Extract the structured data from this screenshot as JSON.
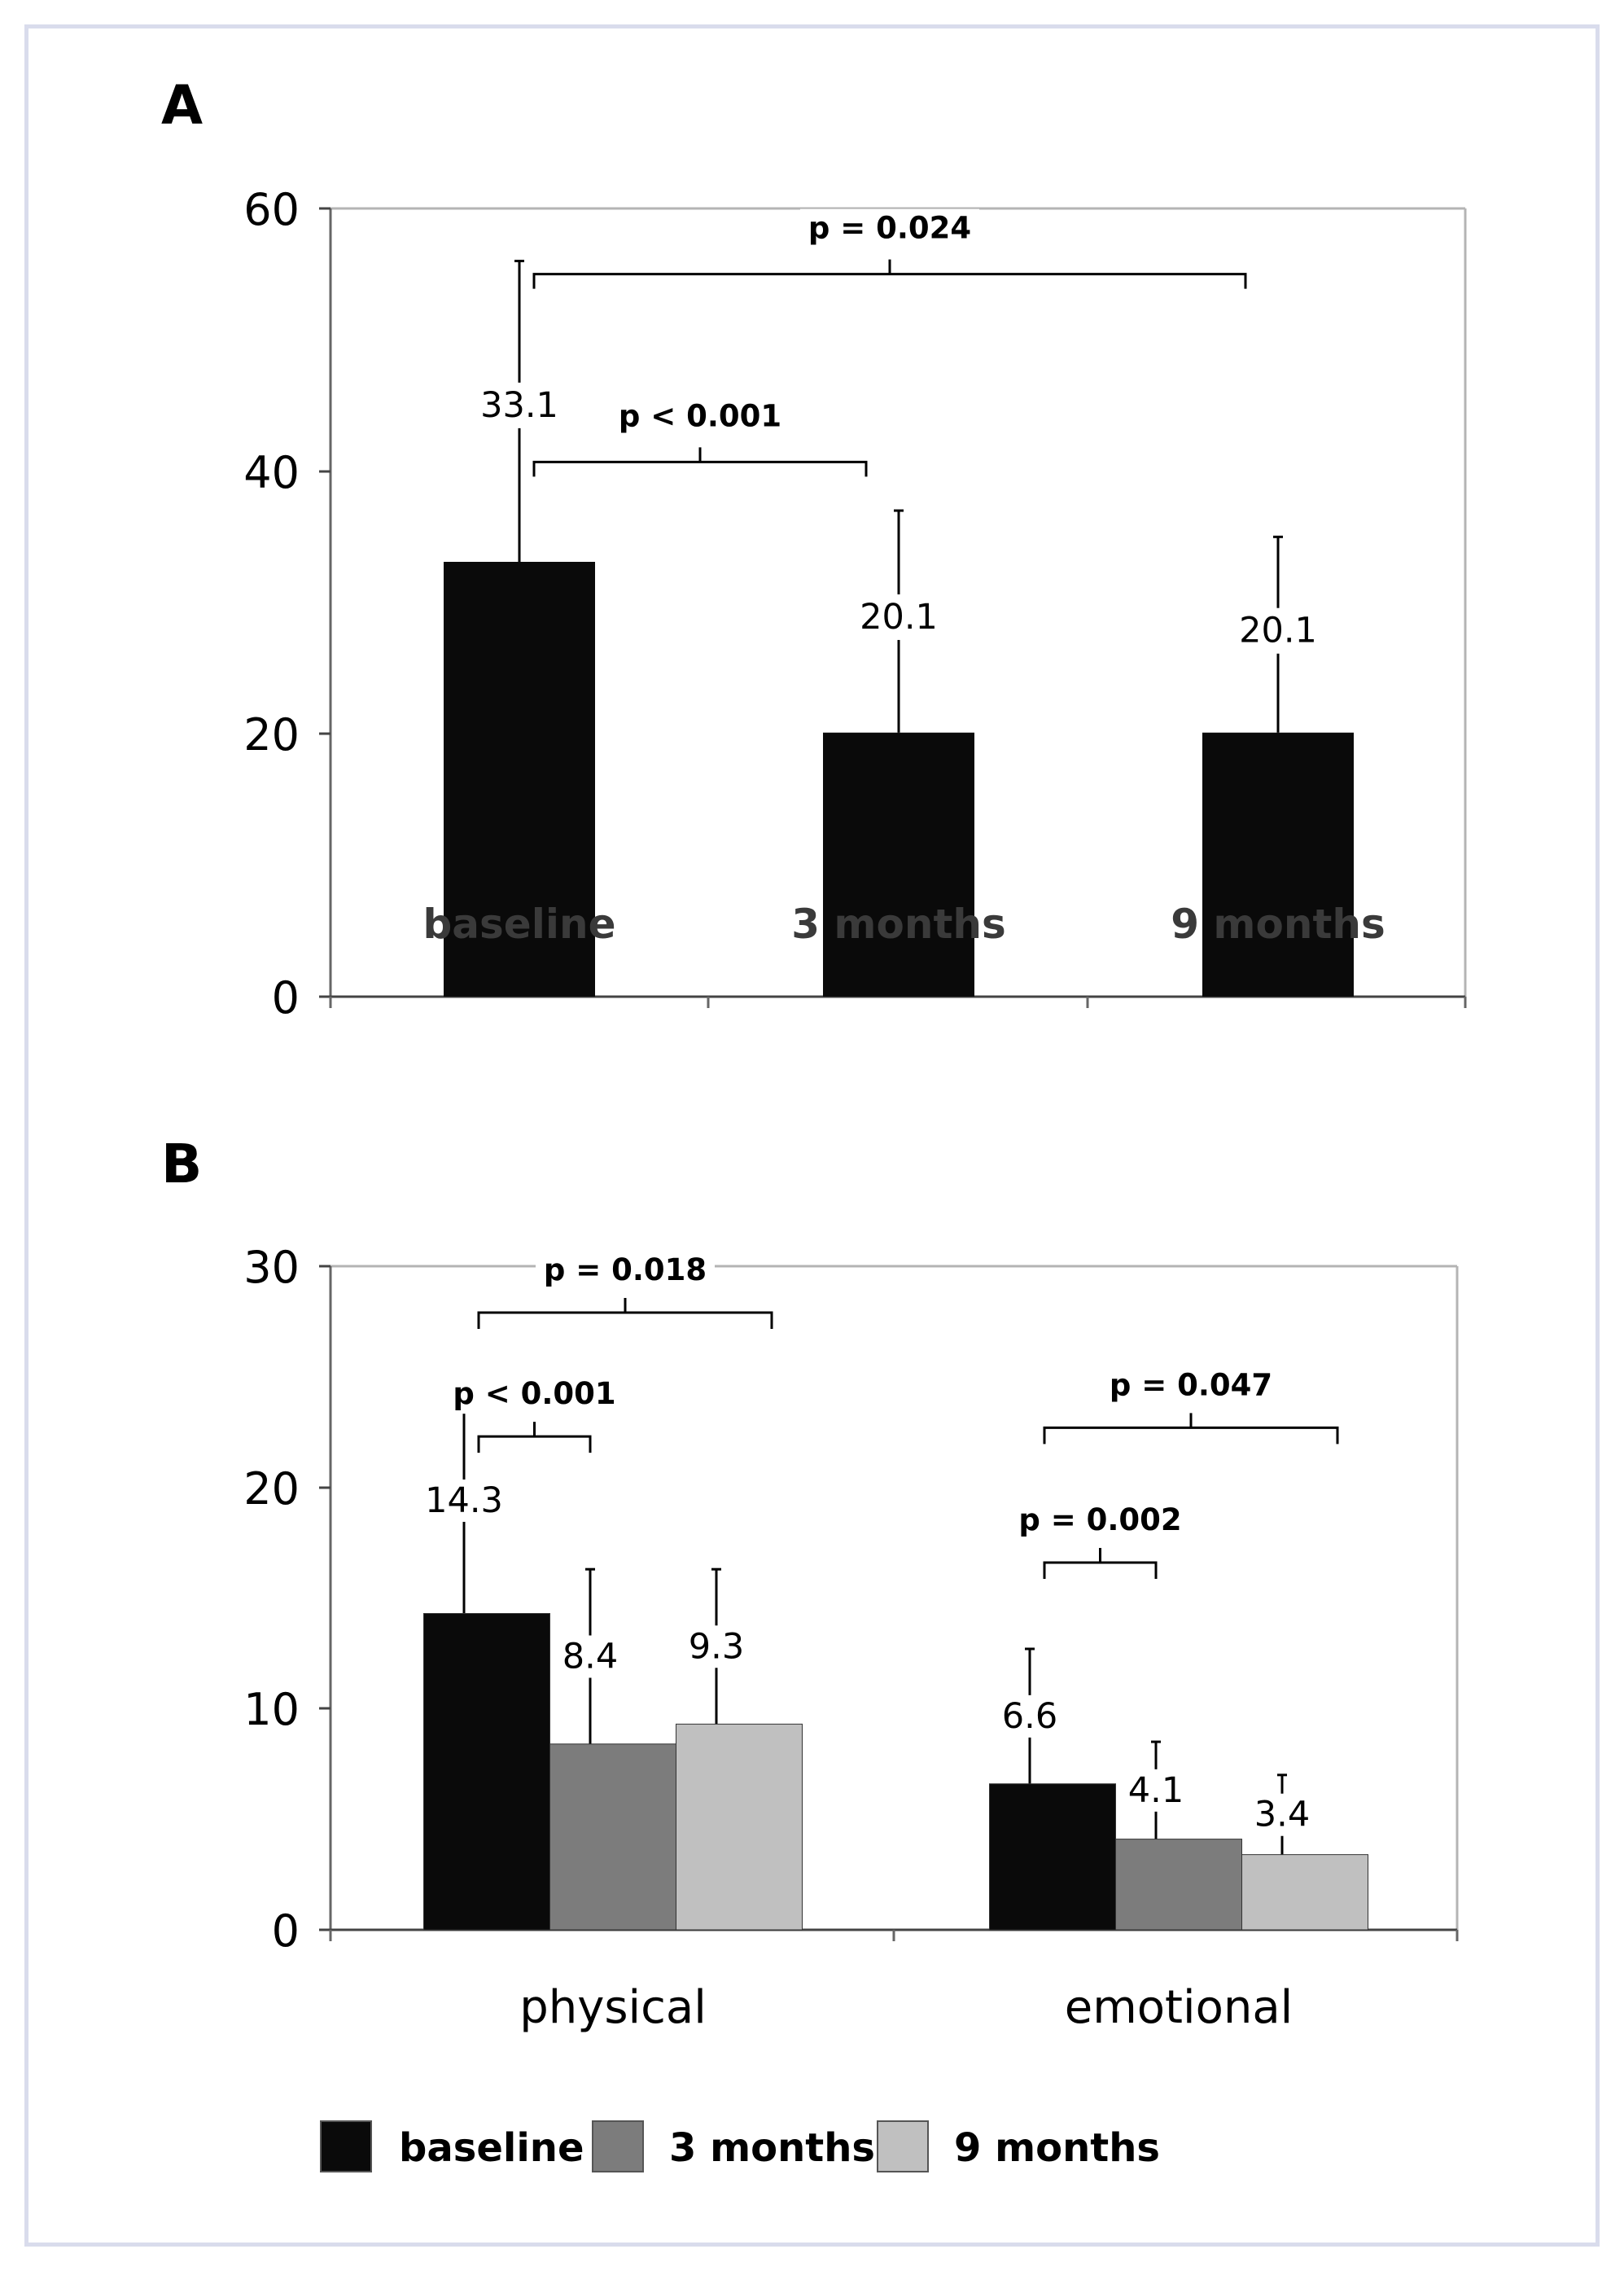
{
  "chart_data": [
    {
      "id": "A",
      "panel_label": "A",
      "type": "bar",
      "categories": [
        "baseline",
        "3 months",
        "9 months"
      ],
      "values": [
        33.1,
        20.1,
        20.1
      ],
      "error_upper": [
        56,
        37,
        35
      ],
      "value_labels": [
        "33.1",
        "20.1",
        "20.1"
      ],
      "ylim": [
        0,
        60
      ],
      "yticks": [
        "0",
        "20",
        "40",
        "60"
      ],
      "xlabel": "",
      "ylabel": "",
      "grid": false,
      "bar_color": "#0a0a0a",
      "significance": [
        {
          "from": 0,
          "to": 1,
          "label": "p < 0.001",
          "level": 40.7
        },
        {
          "from": 0,
          "to": 2,
          "label": "p = 0.024",
          "level": 55.0
        }
      ]
    },
    {
      "id": "B",
      "panel_label": "B",
      "type": "bar",
      "groups": [
        "physical",
        "emotional"
      ],
      "series": [
        {
          "name": "baseline",
          "color": "#0a0a0a",
          "values": [
            14.3,
            6.6
          ],
          "error_upper": [
            24.5,
            12.7
          ],
          "value_labels": [
            "14.3",
            "6.6"
          ]
        },
        {
          "name": "3 months",
          "color": "#7c7c7c",
          "values": [
            8.4,
            4.1
          ],
          "error_upper": [
            16.3,
            8.5
          ],
          "value_labels": [
            "8.4",
            "4.1"
          ]
        },
        {
          "name": "9 months",
          "color": "#c0c0c0",
          "values": [
            9.3,
            3.4
          ],
          "error_upper": [
            16.3,
            7.0
          ],
          "value_labels": [
            "9.3",
            "3.4"
          ]
        }
      ],
      "ylim": [
        0,
        30
      ],
      "yticks": [
        "0",
        "10",
        "20",
        "30"
      ],
      "xlabel": "",
      "ylabel": "",
      "grid": false,
      "legend": {
        "placement": "bottom",
        "entries": [
          "baseline",
          "3 months",
          "9 months"
        ]
      },
      "significance": [
        {
          "group": 0,
          "from": 0,
          "to": 1,
          "label": "p < 0.001",
          "level": 22.3
        },
        {
          "group": 0,
          "from": 0,
          "to": 2,
          "label": "p = 0.018",
          "level": 27.9
        },
        {
          "group": 1,
          "from": 0,
          "to": 1,
          "label": "p = 0.002",
          "level": 16.6
        },
        {
          "group": 1,
          "from": 0,
          "to": 2,
          "label": "p = 0.047",
          "level": 22.7
        }
      ]
    }
  ]
}
